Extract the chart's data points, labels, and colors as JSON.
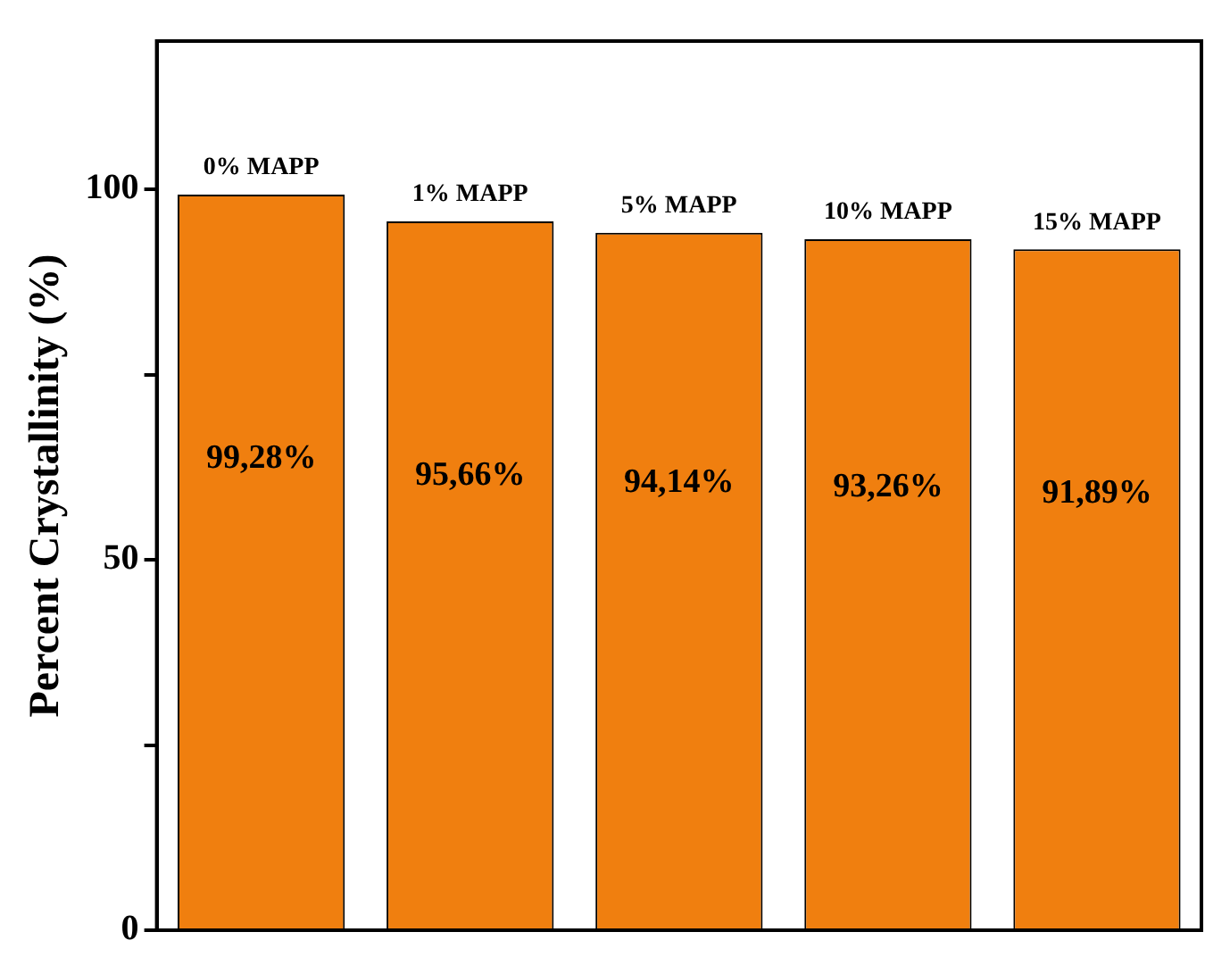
{
  "chart_data": {
    "type": "bar",
    "ylabel": "Percent Crystallinity (%)",
    "categories": [
      "0% MAPP",
      "1% MAPP",
      "5% MAPP",
      "10% MAPP",
      "15% MAPP"
    ],
    "values": [
      99.28,
      95.66,
      94.14,
      93.26,
      91.89
    ],
    "value_labels": [
      "99,28%",
      "95,66%",
      "94,14%",
      "93,26%",
      "91,89%"
    ],
    "color": "#f07f0f",
    "ylim": [
      0,
      120
    ],
    "yticks": [
      0,
      {
        "value": 25,
        "label": null
      },
      50,
      {
        "value": 75,
        "label": null
      },
      100
    ],
    "grid": false,
    "legend": false
  }
}
